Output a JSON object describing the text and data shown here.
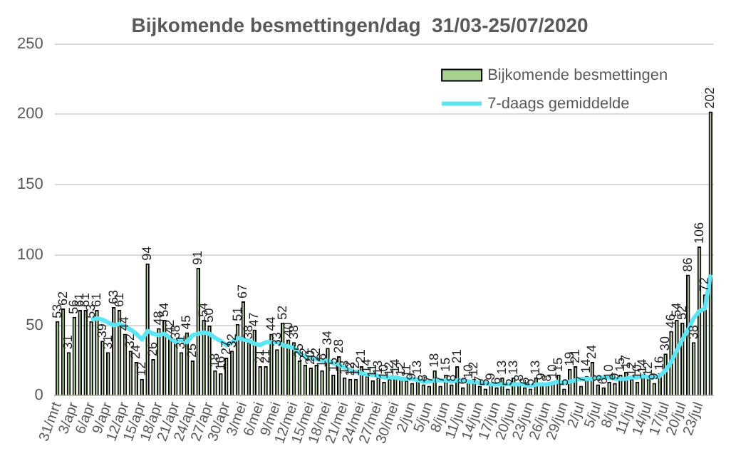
{
  "chart_data": {
    "type": "bar",
    "title": "Bijkomende besmettingen/dag  31/03-25/07/2020",
    "categories": [
      "31/mrt",
      null,
      null,
      "3/apr",
      null,
      null,
      "6/apr",
      null,
      null,
      "9/apr",
      null,
      null,
      "12/apr",
      null,
      null,
      "15/apr",
      null,
      null,
      "18/apr",
      null,
      null,
      "21/apr",
      null,
      null,
      "24/apr",
      null,
      null,
      "27/apr",
      null,
      null,
      "30/apr",
      null,
      null,
      "3/mei",
      null,
      null,
      "6/mei",
      null,
      null,
      "9/mei",
      null,
      null,
      "12/mei",
      null,
      null,
      "15/mei",
      null,
      null,
      "18/mei",
      null,
      null,
      "21/mei",
      null,
      null,
      "24/mei",
      null,
      null,
      "27/mei",
      null,
      null,
      "30/mei",
      null,
      null,
      "2/jun",
      null,
      null,
      "5/jun",
      null,
      null,
      "8/jun",
      null,
      null,
      "11/jun",
      null,
      null,
      "14/jun",
      null,
      null,
      "17/jun",
      null,
      null,
      "20/jun",
      null,
      null,
      "23/jun",
      null,
      null,
      "26/jun",
      null,
      null,
      "29/jun",
      null,
      null,
      "2/jul",
      null,
      null,
      "5/jul",
      null,
      null,
      "8/jul",
      null,
      null,
      "11/jul",
      null,
      null,
      "14/jul",
      null,
      null,
      "17/jul",
      null,
      null,
      "20/jul",
      null,
      null,
      "23/jul",
      null,
      null
    ],
    "series": [
      {
        "name": "Bijkomende besmettingen",
        "color": "#a9d18e",
        "values": [
          53,
          62,
          31,
          56,
          61,
          61,
          53,
          61,
          39,
          31,
          63,
          61,
          44,
          32,
          24,
          12,
          94,
          26,
          48,
          54,
          42,
          38,
          31,
          45,
          25,
          91,
          54,
          50,
          18,
          16,
          27,
          32,
          51,
          67,
          38,
          47,
          21,
          21,
          44,
          33,
          52,
          40,
          38,
          25,
          22,
          20,
          22,
          18,
          34,
          15,
          28,
          13,
          12,
          12,
          21,
          14,
          11,
          13,
          10,
          12,
          14,
          12,
          11,
          9,
          13,
          8,
          7,
          18,
          7,
          15,
          8,
          21,
          6,
          10,
          12,
          7,
          5,
          9,
          6,
          13,
          5,
          13,
          8,
          6,
          5,
          13,
          9,
          8,
          10,
          15,
          5,
          19,
          21,
          7,
          14,
          24,
          8,
          6,
          10,
          9,
          15,
          17,
          12,
          10,
          14,
          12,
          9,
          16,
          30,
          46,
          54,
          52,
          86,
          38,
          106,
          72,
          202
        ],
        "value_labels": [
          "53",
          "62",
          "31",
          "56",
          "61",
          "61",
          "53",
          "61",
          "39",
          "31",
          "63",
          "61",
          "44",
          "32",
          "24",
          "12",
          "94",
          "26",
          "48",
          "54",
          "42",
          "38",
          "31",
          "45",
          "25",
          "91",
          "54",
          "50",
          "18",
          "16",
          "27",
          "32",
          "51",
          "67",
          "38",
          "47",
          "21",
          "21",
          "44",
          "33",
          "52",
          "40",
          "38",
          "25",
          "22",
          "20",
          "22",
          "18",
          "34",
          "15",
          "28",
          "13",
          "12",
          "12",
          "21",
          "14",
          "11",
          "13",
          "10",
          "12",
          "14",
          "12",
          "11",
          "9",
          "13",
          "8",
          "7",
          "18",
          "7",
          "15",
          "8",
          "21",
          "6",
          "10",
          "12",
          "7",
          "5",
          "9",
          "6",
          "13",
          "5",
          "13",
          "8",
          "6",
          "5",
          "13",
          "9",
          "8",
          "10",
          "15",
          "5",
          "19",
          "21",
          "7",
          "14",
          "24",
          "8",
          "6",
          "10",
          "9",
          "15",
          "17",
          "12",
          "10",
          "14",
          "12",
          "9",
          "16",
          "30",
          "46",
          "54",
          "52",
          "86",
          "38",
          "106",
          "72",
          "202"
        ]
      },
      {
        "name": "7-daags gemiddelde",
        "type": "line",
        "color": "#5ce6f5",
        "values": [
          null,
          null,
          null,
          null,
          null,
          null,
          54,
          55,
          54,
          52,
          50,
          51,
          49,
          47,
          44,
          40,
          46,
          44,
          43,
          44,
          41,
          38,
          40,
          38,
          43,
          44,
          45,
          44,
          41,
          39,
          36,
          38,
          41,
          40,
          39,
          37,
          36,
          38,
          38,
          38,
          36,
          35,
          34,
          30,
          28,
          27,
          26,
          25,
          25,
          23,
          22,
          20,
          18,
          17,
          16,
          15,
          15,
          14,
          13,
          13,
          13,
          12,
          12,
          12,
          11,
          10,
          10,
          11,
          11,
          11,
          10,
          11,
          11,
          10,
          10,
          9,
          9,
          8,
          8,
          8,
          8,
          8,
          8,
          8,
          7,
          8,
          8,
          8,
          9,
          10,
          9,
          10,
          11,
          12,
          12,
          12,
          13,
          13,
          13,
          12,
          12,
          12,
          13,
          13,
          14,
          13,
          13,
          14,
          18,
          24,
          32,
          40,
          47,
          55,
          60,
          62,
          86
        ]
      }
    ],
    "ylim": [
      0,
      250
    ],
    "yticks": [
      0,
      50,
      100,
      150,
      200,
      250
    ],
    "grid": "y",
    "legend": "top right"
  }
}
